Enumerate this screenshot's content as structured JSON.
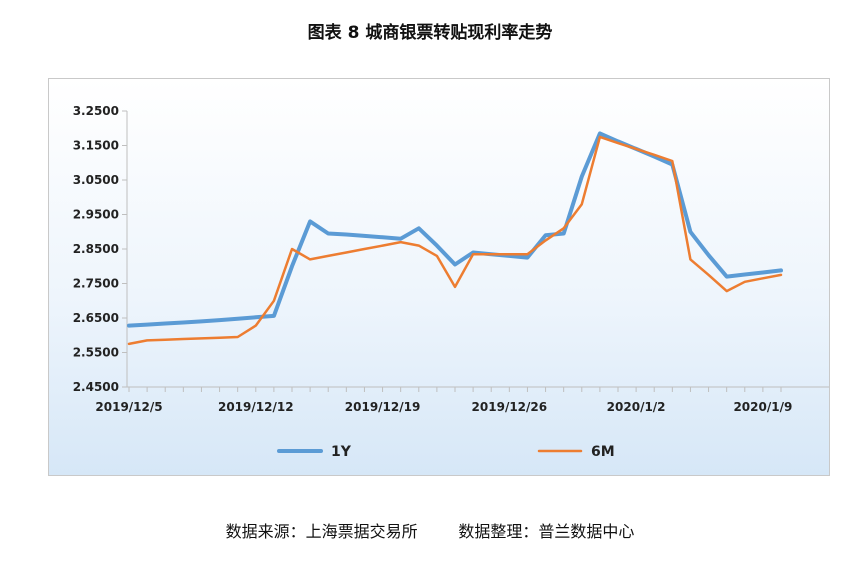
{
  "title": "图表 8  城商银票转贴现利率走势",
  "source_text": "数据来源：上海票据交易所        数据整理：普兰数据中心",
  "colors": {
    "series_1y": "#5b9bd5",
    "series_6m": "#ed7d31",
    "axis": "#bfbfbf"
  },
  "chart_data": {
    "type": "line",
    "title": "图表 8  城商银票转贴现利率走势",
    "xlabel": "",
    "ylabel": "",
    "ylim": [
      2.45,
      3.25
    ],
    "yticks": [
      "3.2500",
      "3.1500",
      "3.0500",
      "2.9500",
      "2.8500",
      "2.7500",
      "2.6500",
      "2.5500",
      "2.4500"
    ],
    "ytick_values": [
      3.25,
      3.15,
      3.05,
      2.95,
      2.85,
      2.75,
      2.65,
      2.55,
      2.45
    ],
    "x_categories": [
      "2019/12/5",
      "2019/12/12",
      "2019/12/19",
      "2019/12/26",
      "2020/1/2",
      "2020/1/9"
    ],
    "x_day_range": [
      0,
      36
    ],
    "grid": false,
    "legend_position": "bottom",
    "series": [
      {
        "name": "1Y",
        "color": "#5b9bd5",
        "x": [
          0,
          1,
          2,
          3,
          4,
          5,
          6,
          7,
          8,
          9,
          10,
          11,
          12,
          13,
          14,
          15,
          16,
          17,
          18,
          19,
          20,
          21,
          22,
          23,
          24,
          25,
          26,
          27,
          28,
          29,
          30,
          31,
          32,
          33,
          34,
          35,
          36
        ],
        "values": [
          2.628,
          2.631,
          2.634,
          2.637,
          2.64,
          2.644,
          2.648,
          2.652,
          2.656,
          2.8,
          2.93,
          2.895,
          2.892,
          2.888,
          2.884,
          2.88,
          2.91,
          2.86,
          2.805,
          2.84,
          2.835,
          2.83,
          2.825,
          2.89,
          2.895,
          3.06,
          3.185,
          3.162,
          3.14,
          3.118,
          3.095,
          2.9,
          2.832,
          2.77,
          2.776,
          2.782,
          2.788
        ]
      },
      {
        "name": "6M",
        "color": "#ed7d31",
        "x": [
          0,
          1,
          2,
          3,
          4,
          5,
          6,
          7,
          8,
          9,
          10,
          11,
          12,
          13,
          14,
          15,
          16,
          17,
          18,
          19,
          20,
          21,
          22,
          23,
          24,
          25,
          26,
          27,
          28,
          29,
          30,
          31,
          32,
          33,
          34,
          35,
          36
        ],
        "values": [
          2.575,
          2.585,
          2.587,
          2.589,
          2.591,
          2.593,
          2.595,
          2.628,
          2.7,
          2.85,
          2.82,
          2.83,
          2.84,
          2.85,
          2.86,
          2.87,
          2.86,
          2.83,
          2.74,
          2.835,
          2.835,
          2.835,
          2.835,
          2.875,
          2.91,
          2.98,
          3.175,
          3.157,
          3.14,
          3.123,
          3.105,
          2.82,
          2.775,
          2.728,
          2.755,
          2.765,
          2.775
        ]
      }
    ]
  }
}
